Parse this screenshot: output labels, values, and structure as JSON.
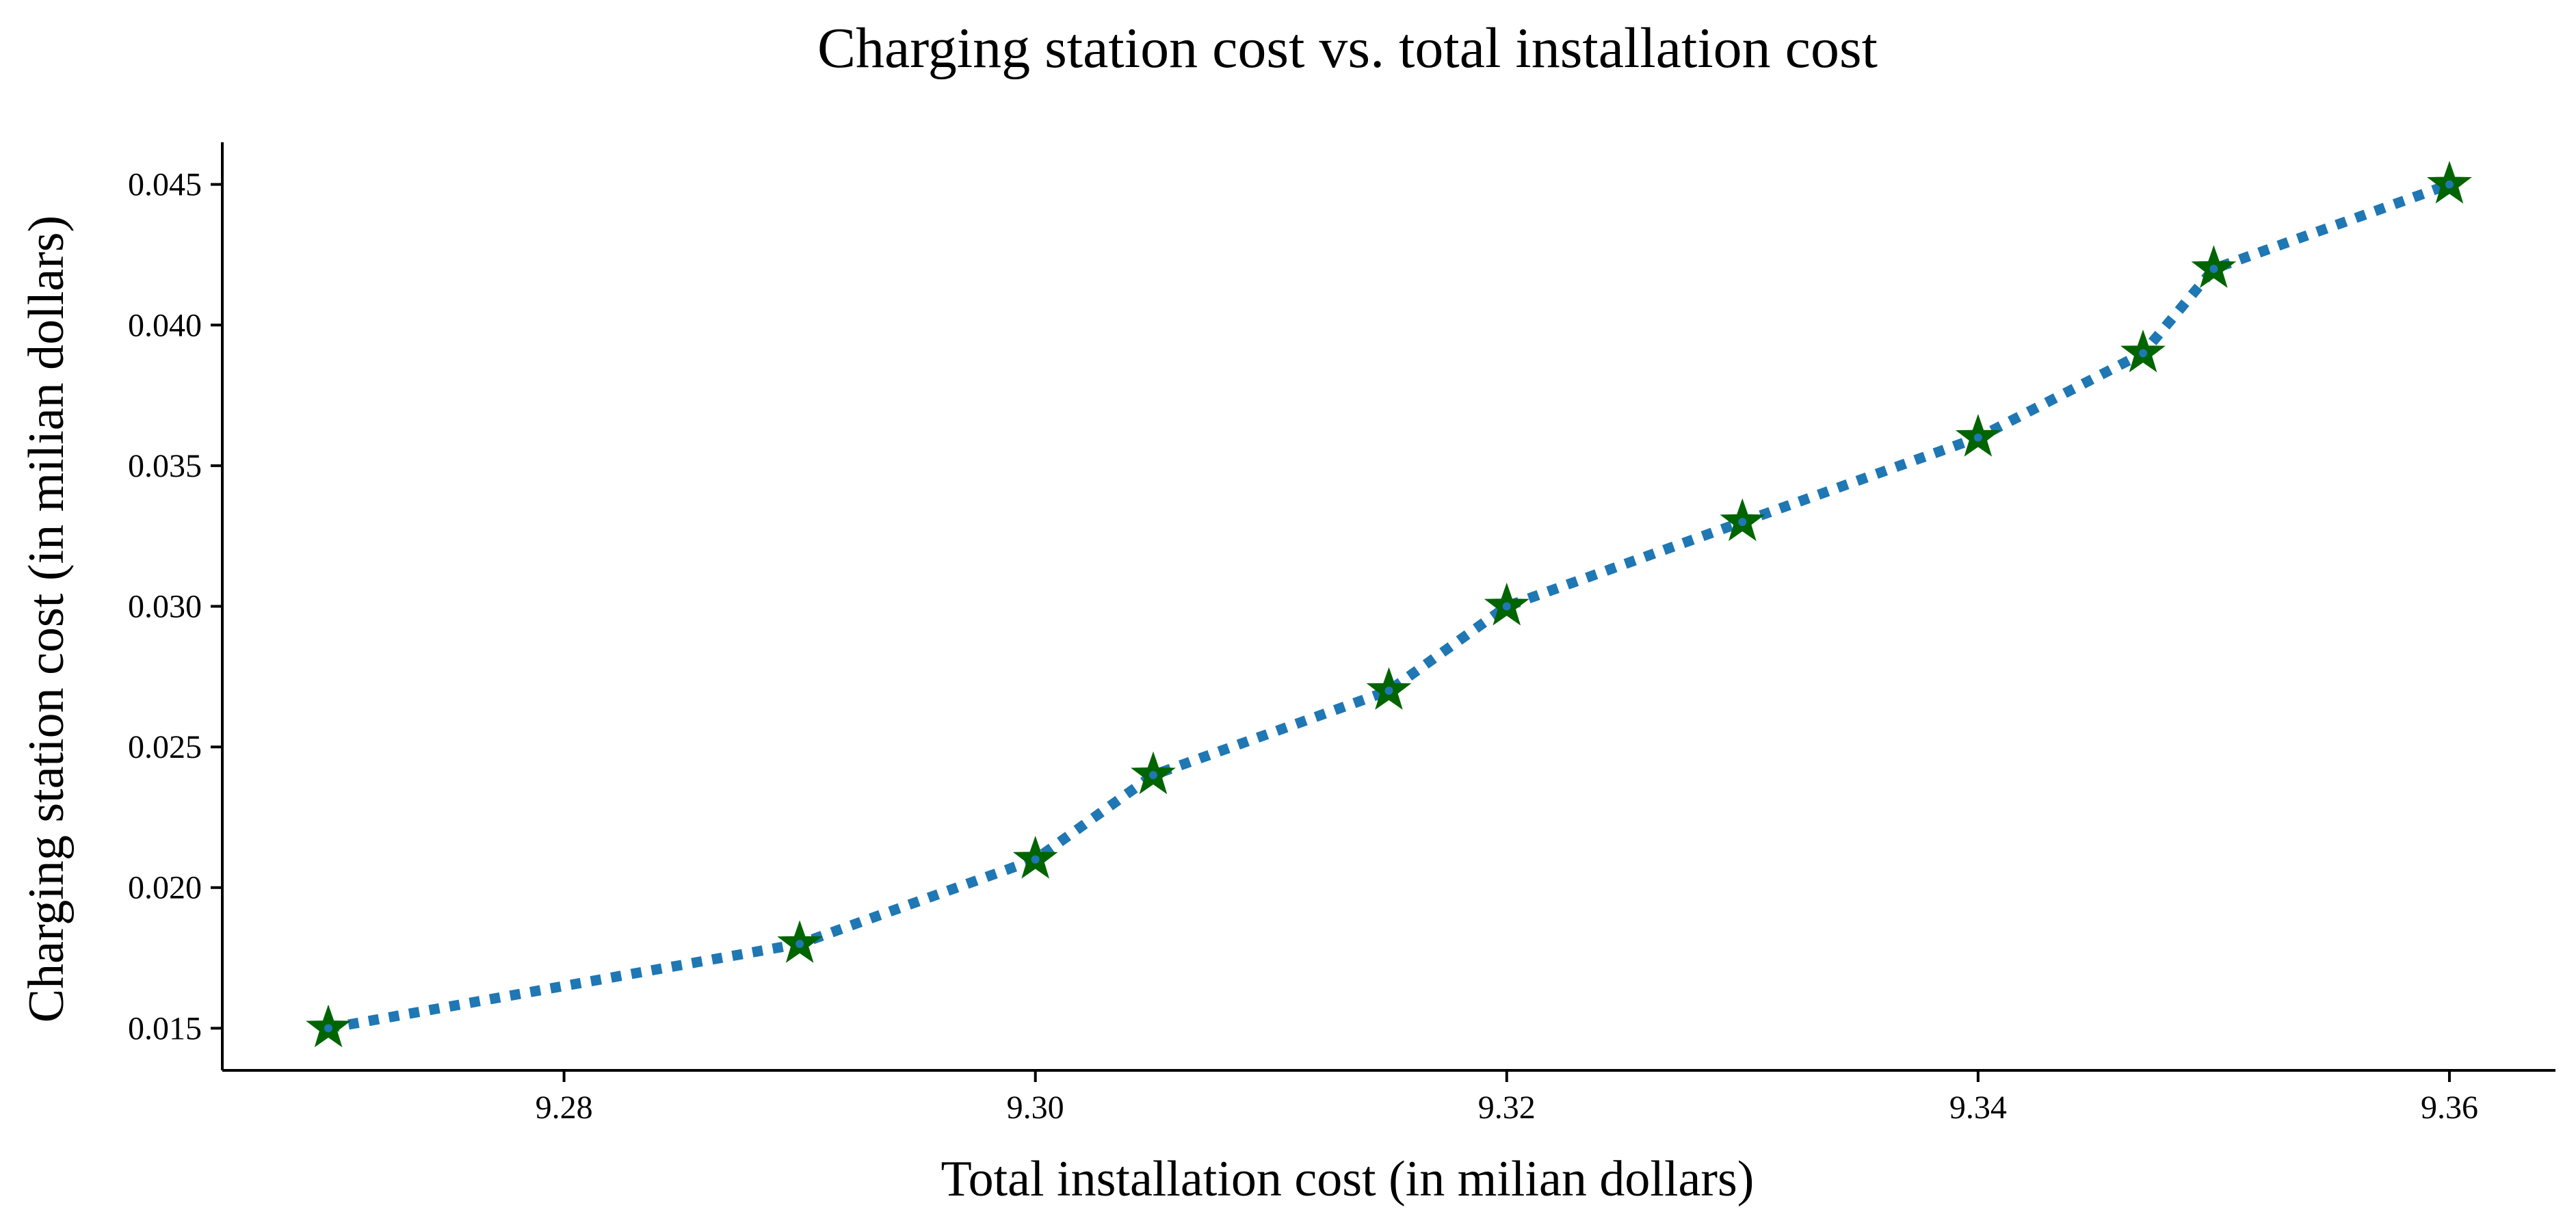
{
  "chart_data": {
    "type": "line",
    "title": "Charging station cost vs. total installation cost",
    "xlabel": "Total installation cost (in milian dollars)",
    "ylabel": "Charging station cost (in milian dollars)",
    "x": [
      9.27,
      9.29,
      9.3,
      9.305,
      9.315,
      9.32,
      9.33,
      9.34,
      9.347,
      9.35,
      9.36
    ],
    "series": [
      {
        "name": "Charging station cost",
        "values": [
          0.015,
          0.018,
          0.021,
          0.024,
          0.027,
          0.03,
          0.033,
          0.036,
          0.039,
          0.042,
          0.045
        ],
        "line_color": "#1f77b4",
        "line_style": "dotted",
        "marker": "star",
        "marker_color": "#006400"
      }
    ],
    "xlim": [
      9.2655,
      9.3645
    ],
    "ylim": [
      0.0135,
      0.0465
    ],
    "xticks": [
      9.28,
      9.3,
      9.32,
      9.34,
      9.36
    ],
    "xtick_labels": [
      "9.28",
      "9.30",
      "9.32",
      "9.34",
      "9.36"
    ],
    "yticks": [
      0.015,
      0.02,
      0.025,
      0.03,
      0.035,
      0.04,
      0.045
    ],
    "ytick_labels": [
      "0.015",
      "0.020",
      "0.025",
      "0.030",
      "0.035",
      "0.040",
      "0.045"
    ],
    "grid": false,
    "legend": "none"
  }
}
